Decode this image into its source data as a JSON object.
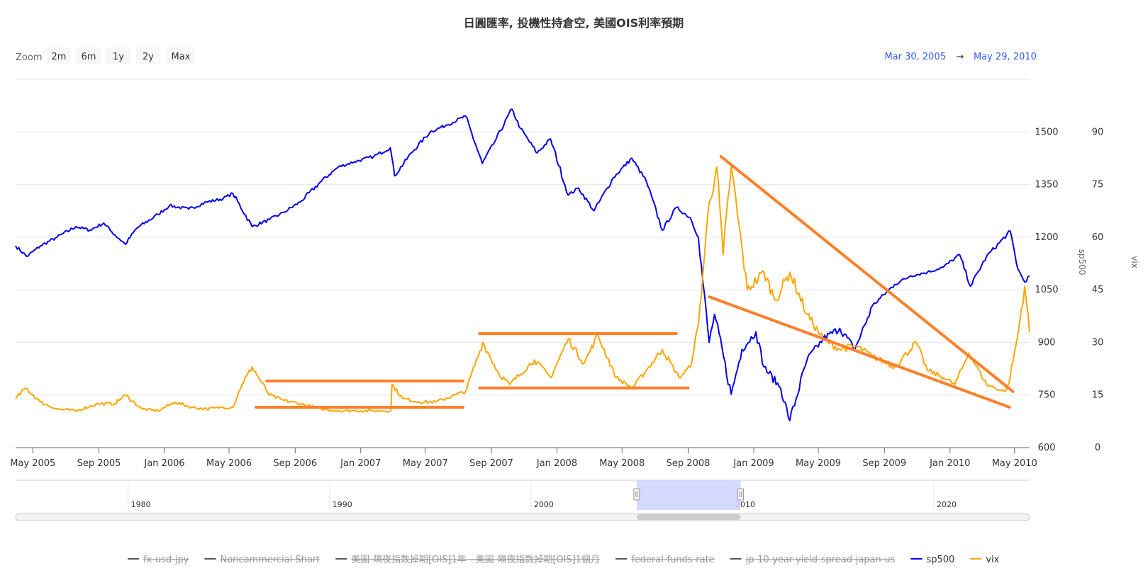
{
  "title": "日圓匯率, 投機性持倉空, 美國OIS利率預期",
  "zoom": {
    "label": "Zoom",
    "buttons": [
      "2m",
      "6m",
      "1y",
      "2y",
      "Max"
    ]
  },
  "range": {
    "from": "Mar 30, 2005",
    "arrow": "→",
    "to": "May 29, 2010"
  },
  "colors": {
    "sp500": "#0000ee",
    "vix": "#ffa500",
    "annotation": "#ff7f2a",
    "range_text": "#335cff",
    "grid": "#e6e6e6",
    "navigator_mask": "#ccd3ff"
  },
  "legend": [
    {
      "name": "fx-usd-jpy",
      "color": "#555555",
      "hidden": true
    },
    {
      "name": "Noncommercial Short",
      "color": "#555555",
      "hidden": true
    },
    {
      "name": "美国-隔夜指数掉期[OIS]1年 - 美国-隔夜指数掉期[OIS]1個月",
      "color": "#555555",
      "hidden": true
    },
    {
      "name": "federal-funds-rate",
      "color": "#555555",
      "hidden": true
    },
    {
      "name": "jp-10-year-yield-spread-japan-us",
      "color": "#555555",
      "hidden": true
    },
    {
      "name": "sp500",
      "color": "#0000ee",
      "hidden": false
    },
    {
      "name": "vix",
      "color": "#ffa500",
      "hidden": false
    }
  ],
  "navigator": {
    "ticks": [
      "1980",
      "1990",
      "2000",
      "2010",
      "2020"
    ],
    "range_start": "2005-03-30",
    "range_end": "2010-05-29"
  },
  "chart_data": {
    "type": "line",
    "x_range": [
      "2005-03-30",
      "2010-05-29"
    ],
    "x_ticks": [
      "May 2005",
      "Sep 2005",
      "Jan 2006",
      "May 2006",
      "Sep 2006",
      "Jan 2007",
      "May 2007",
      "Sep 2007",
      "Jan 2008",
      "May 2008",
      "Sep 2008",
      "Jan 2009",
      "May 2009",
      "Sep 2009",
      "Jan 2010",
      "May 2010"
    ],
    "y_axes": [
      {
        "name": "sp500",
        "title": "sp500",
        "range": [
          600,
          1650
        ],
        "ticks": [
          "600",
          "750",
          "900",
          "1050",
          "1200",
          "1350",
          "1500"
        ]
      },
      {
        "name": "vix",
        "title": "vix",
        "range": [
          0,
          105
        ],
        "ticks": [
          "0",
          "15",
          "30",
          "45",
          "60",
          "75",
          "90"
        ]
      }
    ],
    "series": [
      {
        "name": "sp500",
        "axis": "sp500",
        "points": [
          [
            "2005-03-30",
            1175
          ],
          [
            "2005-04-20",
            1145
          ],
          [
            "2005-05-15",
            1175
          ],
          [
            "2005-06-15",
            1200
          ],
          [
            "2005-07-20",
            1230
          ],
          [
            "2005-08-15",
            1220
          ],
          [
            "2005-09-10",
            1240
          ],
          [
            "2005-09-25",
            1215
          ],
          [
            "2005-10-20",
            1180
          ],
          [
            "2005-11-10",
            1225
          ],
          [
            "2005-12-20",
            1265
          ],
          [
            "2006-01-10",
            1290
          ],
          [
            "2006-02-15",
            1280
          ],
          [
            "2006-03-20",
            1300
          ],
          [
            "2006-04-20",
            1310
          ],
          [
            "2006-05-08",
            1325
          ],
          [
            "2006-06-13",
            1230
          ],
          [
            "2006-07-15",
            1250
          ],
          [
            "2006-08-10",
            1270
          ],
          [
            "2006-09-10",
            1300
          ],
          [
            "2006-10-20",
            1360
          ],
          [
            "2006-11-20",
            1400
          ],
          [
            "2006-12-20",
            1415
          ],
          [
            "2007-01-25",
            1430
          ],
          [
            "2007-02-25",
            1455
          ],
          [
            "2007-03-05",
            1375
          ],
          [
            "2007-04-05",
            1440
          ],
          [
            "2007-05-10",
            1500
          ],
          [
            "2007-06-10",
            1520
          ],
          [
            "2007-07-15",
            1545
          ],
          [
            "2007-08-15",
            1410
          ],
          [
            "2007-09-10",
            1480
          ],
          [
            "2007-10-09",
            1565
          ],
          [
            "2007-10-25",
            1510
          ],
          [
            "2007-11-25",
            1440
          ],
          [
            "2007-12-20",
            1480
          ],
          [
            "2008-01-22",
            1320
          ],
          [
            "2008-02-10",
            1340
          ],
          [
            "2008-03-10",
            1275
          ],
          [
            "2008-04-15",
            1370
          ],
          [
            "2008-05-19",
            1425
          ],
          [
            "2008-06-15",
            1360
          ],
          [
            "2008-07-15",
            1220
          ],
          [
            "2008-08-10",
            1285
          ],
          [
            "2008-09-05",
            1255
          ],
          [
            "2008-09-20",
            1200
          ],
          [
            "2008-10-10",
            900
          ],
          [
            "2008-10-20",
            980
          ],
          [
            "2008-11-20",
            752
          ],
          [
            "2008-12-10",
            880
          ],
          [
            "2009-01-05",
            930
          ],
          [
            "2009-01-20",
            830
          ],
          [
            "2009-02-20",
            770
          ],
          [
            "2009-03-09",
            677
          ],
          [
            "2009-04-10",
            850
          ],
          [
            "2009-05-10",
            910
          ],
          [
            "2009-06-10",
            940
          ],
          [
            "2009-07-08",
            880
          ],
          [
            "2009-08-10",
            1005
          ],
          [
            "2009-09-20",
            1065
          ],
          [
            "2009-10-20",
            1090
          ],
          [
            "2009-11-20",
            1100
          ],
          [
            "2009-12-20",
            1115
          ],
          [
            "2010-01-19",
            1150
          ],
          [
            "2010-02-08",
            1060
          ],
          [
            "2010-03-10",
            1145
          ],
          [
            "2010-04-23",
            1217
          ],
          [
            "2010-05-07",
            1110
          ],
          [
            "2010-05-20",
            1072
          ],
          [
            "2010-05-29",
            1090
          ]
        ]
      },
      {
        "name": "vix",
        "axis": "vix",
        "points": [
          [
            "2005-03-30",
            14
          ],
          [
            "2005-04-18",
            17
          ],
          [
            "2005-05-15",
            13
          ],
          [
            "2005-06-15",
            11
          ],
          [
            "2005-07-20",
            10.5
          ],
          [
            "2005-08-30",
            12.5
          ],
          [
            "2005-09-30",
            12.5
          ],
          [
            "2005-10-20",
            15
          ],
          [
            "2005-11-20",
            11
          ],
          [
            "2005-12-20",
            10.5
          ],
          [
            "2006-01-20",
            13
          ],
          [
            "2006-02-20",
            11.5
          ],
          [
            "2006-03-20",
            11
          ],
          [
            "2006-04-20",
            11.5
          ],
          [
            "2006-05-08",
            11.5
          ],
          [
            "2006-05-25",
            18
          ],
          [
            "2006-06-13",
            23
          ],
          [
            "2006-07-15",
            15
          ],
          [
            "2006-08-10",
            13.5
          ],
          [
            "2006-09-10",
            12.5
          ],
          [
            "2006-10-20",
            11
          ],
          [
            "2006-11-20",
            10.5
          ],
          [
            "2006-12-20",
            10.5
          ],
          [
            "2007-01-25",
            10.5
          ],
          [
            "2007-02-26",
            10.5
          ],
          [
            "2007-02-28",
            18
          ],
          [
            "2007-03-20",
            14
          ],
          [
            "2007-04-20",
            13
          ],
          [
            "2007-05-20",
            13
          ],
          [
            "2007-06-25",
            15
          ],
          [
            "2007-07-15",
            16
          ],
          [
            "2007-08-16",
            30
          ],
          [
            "2007-09-15",
            21
          ],
          [
            "2007-10-05",
            18
          ],
          [
            "2007-11-20",
            25
          ],
          [
            "2007-12-20",
            20
          ],
          [
            "2008-01-22",
            31
          ],
          [
            "2008-02-20",
            24
          ],
          [
            "2008-03-17",
            32
          ],
          [
            "2008-04-20",
            20
          ],
          [
            "2008-05-20",
            17
          ],
          [
            "2008-06-20",
            23
          ],
          [
            "2008-07-15",
            28
          ],
          [
            "2008-08-15",
            20
          ],
          [
            "2008-09-05",
            23
          ],
          [
            "2008-09-20",
            35
          ],
          [
            "2008-10-10",
            70
          ],
          [
            "2008-10-24",
            80
          ],
          [
            "2008-11-05",
            55
          ],
          [
            "2008-11-20",
            80
          ],
          [
            "2008-12-20",
            45
          ],
          [
            "2009-01-20",
            50
          ],
          [
            "2009-02-10",
            42
          ],
          [
            "2009-03-09",
            50
          ],
          [
            "2009-04-10",
            38
          ],
          [
            "2009-05-10",
            31
          ],
          [
            "2009-06-10",
            28
          ],
          [
            "2009-07-10",
            29
          ],
          [
            "2009-08-10",
            26
          ],
          [
            "2009-09-20",
            23
          ],
          [
            "2009-10-30",
            30
          ],
          [
            "2009-11-20",
            22
          ],
          [
            "2009-12-20",
            20
          ],
          [
            "2010-01-10",
            18
          ],
          [
            "2010-02-05",
            27
          ],
          [
            "2010-03-10",
            18
          ],
          [
            "2010-04-12",
            16
          ],
          [
            "2010-04-20",
            18
          ],
          [
            "2010-05-07",
            32
          ],
          [
            "2010-05-20",
            46
          ],
          [
            "2010-05-29",
            33
          ]
        ]
      }
    ],
    "annotations": [
      {
        "type": "line",
        "from": [
          "2006-07-10",
          19
        ],
        "to": [
          "2007-07-10",
          19
        ]
      },
      {
        "type": "line",
        "from": [
          "2006-06-20",
          11.5
        ],
        "to": [
          "2007-07-10",
          11.5
        ]
      },
      {
        "type": "line",
        "from": [
          "2007-08-10",
          32.5
        ],
        "to": [
          "2008-08-10",
          32.5
        ]
      },
      {
        "type": "line",
        "from": [
          "2007-08-10",
          17
        ],
        "to": [
          "2008-09-01",
          17
        ]
      },
      {
        "type": "line",
        "from": [
          "2008-11-01",
          83
        ],
        "to": [
          "2010-04-28",
          16
        ]
      },
      {
        "type": "line",
        "from": [
          "2008-10-10",
          43
        ],
        "to": [
          "2010-04-22",
          11.5
        ]
      }
    ],
    "grid": true,
    "legend_position": "bottom"
  }
}
